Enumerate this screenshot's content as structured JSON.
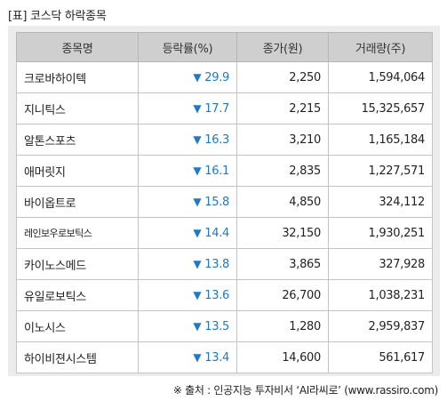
{
  "title": "[표] 코스닥 하락종목",
  "table": {
    "headers": [
      "종목명",
      "등락률(%)",
      "종가(원)",
      "거래량(주)"
    ],
    "rows": [
      {
        "name": "크로바하이텍",
        "rate": "29.9",
        "close": "2,250",
        "volume": "1,594,064"
      },
      {
        "name": "지니틱스",
        "rate": "17.7",
        "close": "2,215",
        "volume": "15,325,657"
      },
      {
        "name": "알톤스포츠",
        "rate": "16.3",
        "close": "3,210",
        "volume": "1,165,184"
      },
      {
        "name": "애머릿지",
        "rate": "16.1",
        "close": "2,835",
        "volume": "1,227,571"
      },
      {
        "name": "바이옵트로",
        "rate": "15.8",
        "close": "4,850",
        "volume": "324,112"
      },
      {
        "name": "레인보우로보틱스",
        "rate": "14.4",
        "close": "32,150",
        "volume": "1,930,251"
      },
      {
        "name": "카이노스메드",
        "rate": "13.8",
        "close": "3,865",
        "volume": "327,928"
      },
      {
        "name": "유일로보틱스",
        "rate": "13.6",
        "close": "26,700",
        "volume": "1,038,231"
      },
      {
        "name": "이노시스",
        "rate": "13.5",
        "close": "1,280",
        "volume": "2,959,837"
      },
      {
        "name": "하이비젼시스템",
        "rate": "13.4",
        "close": "14,600",
        "volume": "561,617"
      }
    ]
  },
  "down_marker": "▼",
  "colors": {
    "down": "#1f78c8",
    "header_bg": "#cfcfcf",
    "frame_bg": "#ececec"
  },
  "footer": "※ 출처 : 인공지능 투자비서 ‘AI라씨로’ (www.rassiro.com)"
}
